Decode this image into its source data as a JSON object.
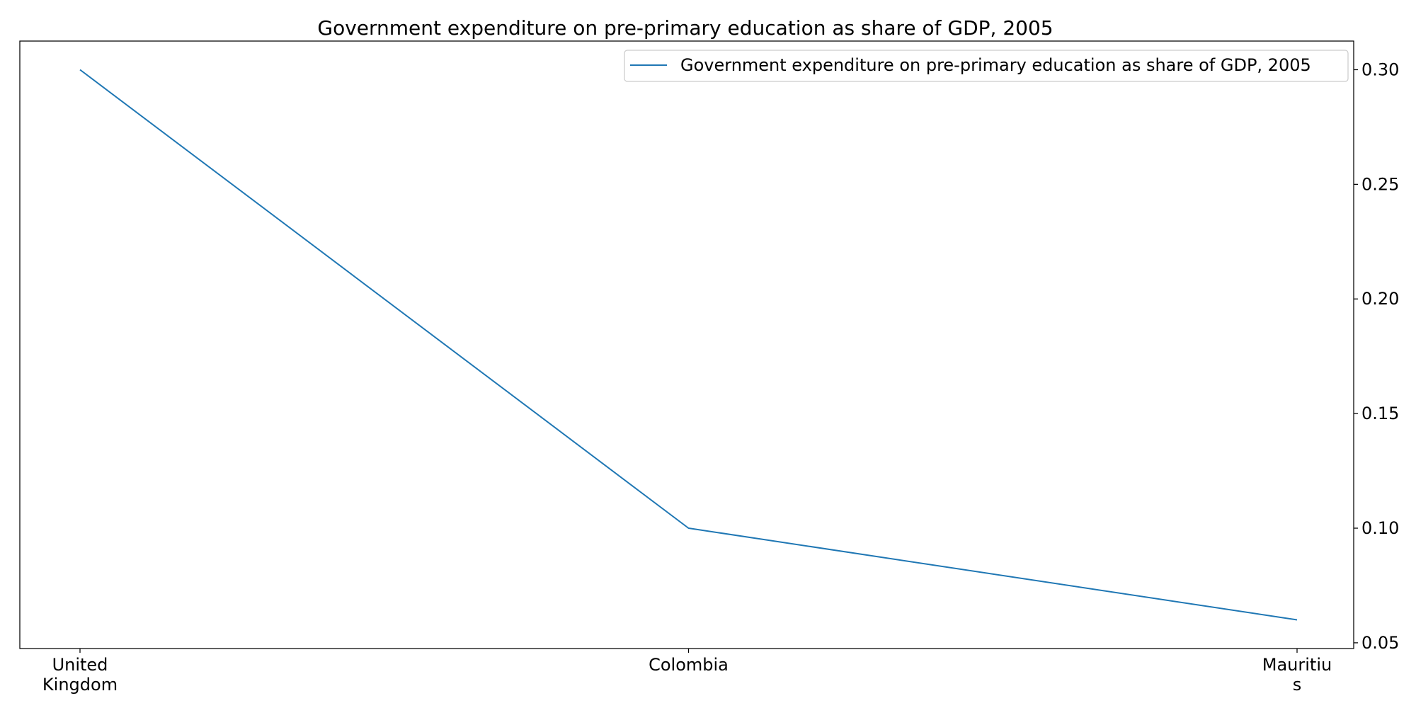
{
  "chart_data": {
    "type": "line",
    "title": "Government expenditure on pre-primary education as share of GDP, 2005",
    "xlabel": "",
    "ylabel": "",
    "categories": [
      [
        "United",
        "Kingdom"
      ],
      [
        "Colombia"
      ],
      [
        "Mauritiu",
        "s"
      ]
    ],
    "series": [
      {
        "name": "Government expenditure on pre-primary education as share of GDP, 2005",
        "values": [
          0.3,
          0.1,
          0.06
        ],
        "color": "#1f77b4"
      }
    ],
    "ylim": [
      0.0475,
      0.3125
    ],
    "yticks": [
      0.05,
      0.1,
      0.15,
      0.2,
      0.25,
      0.3
    ],
    "ytick_labels": [
      "0.05",
      "0.10",
      "0.15",
      "0.20",
      "0.25",
      "0.30"
    ],
    "y_axis_side": "right",
    "grid": false,
    "legend_position": "top-right"
  }
}
